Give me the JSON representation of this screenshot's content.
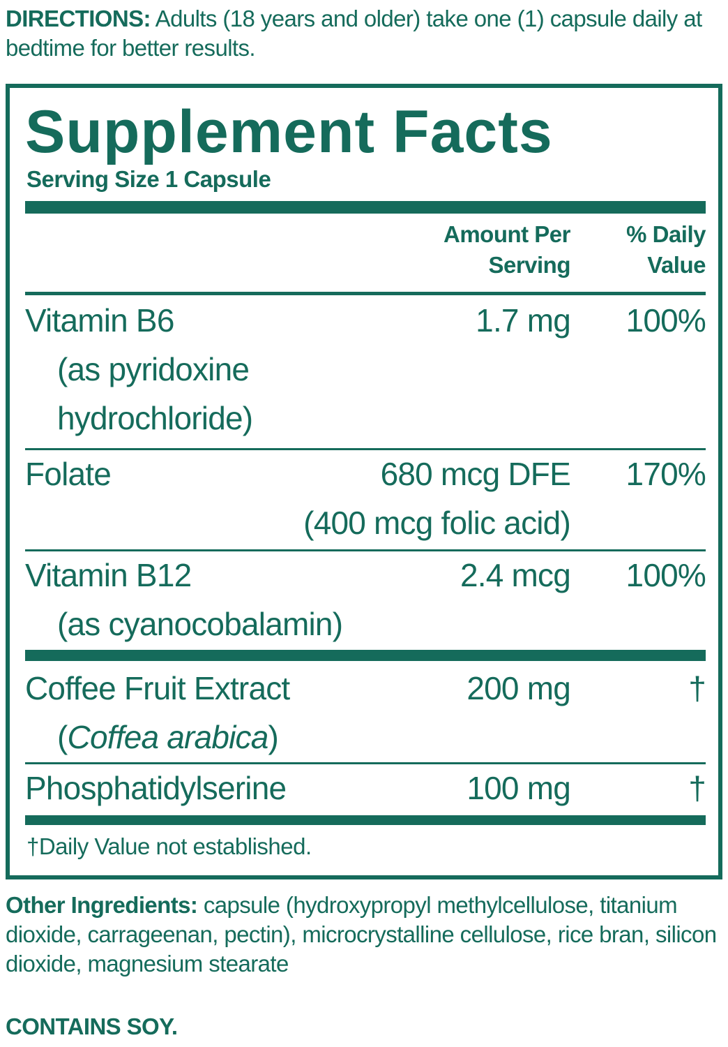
{
  "directions": {
    "label": "DIRECTIONS:",
    "text": "Adults (18 years and older) take one (1) capsule daily at bedtime for better results."
  },
  "facts": {
    "title": "Supplement Facts",
    "serving": "Serving Size 1 Capsule",
    "header": {
      "amount": "Amount Per Serving",
      "dv": "% Daily Value"
    },
    "rows": [
      {
        "name": "Vitamin B6",
        "sub": "(as pyridoxine hydrochloride)",
        "amount": "1.7 mg",
        "dv": "100%"
      },
      {
        "name": "Folate",
        "amount": "680 mcg DFE",
        "amount_sub": "(400 mcg folic acid)",
        "dv": "170%"
      },
      {
        "name": "Vitamin B12",
        "sub": "(as cyanocobalamin)",
        "amount": "2.4 mcg",
        "dv": "100%"
      },
      {
        "name": "Coffee Fruit Extract",
        "sub_parts": [
          "(",
          "Coffea arabica",
          ")"
        ],
        "amount": "200 mg",
        "dv": "†"
      },
      {
        "name": "Phosphatidylserine",
        "amount": "100 mg",
        "dv": "†"
      }
    ],
    "footnote": "†Daily Value not established."
  },
  "other": {
    "label": "Other Ingredients:",
    "text": "capsule (hydroxypropyl methylcellulose, titanium dioxide, carrageenan, pectin), microcrystalline cellulose, rice bran, silicon dioxide, magnesium stearate"
  },
  "contains": "CONTAINS SOY."
}
